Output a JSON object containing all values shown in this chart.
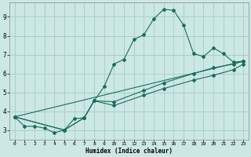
{
  "xlabel": "Humidex (Indice chaleur)",
  "background_color": "#cce8e4",
  "grid_color": "#aacfca",
  "line_color": "#1a6b60",
  "xlim": [
    -0.5,
    23.5
  ],
  "ylim": [
    2.5,
    9.75
  ],
  "xticks": [
    0,
    1,
    2,
    3,
    4,
    5,
    6,
    7,
    8,
    9,
    10,
    11,
    12,
    13,
    14,
    15,
    16,
    17,
    18,
    19,
    20,
    21,
    22,
    23
  ],
  "yticks": [
    3,
    4,
    5,
    6,
    7,
    8,
    9
  ],
  "series_main": [
    [
      0,
      3.7
    ],
    [
      1,
      3.2
    ],
    [
      2,
      3.2
    ],
    [
      3,
      3.1
    ],
    [
      4,
      2.85
    ],
    [
      5,
      3.0
    ],
    [
      6,
      3.6
    ],
    [
      7,
      3.65
    ],
    [
      8,
      4.55
    ],
    [
      9,
      5.3
    ],
    [
      10,
      6.5
    ],
    [
      11,
      6.75
    ],
    [
      12,
      7.8
    ],
    [
      13,
      8.05
    ],
    [
      14,
      8.9
    ],
    [
      15,
      9.4
    ],
    [
      16,
      9.35
    ],
    [
      17,
      8.55
    ],
    [
      18,
      7.05
    ],
    [
      19,
      6.9
    ],
    [
      20,
      7.35
    ],
    [
      21,
      7.05
    ],
    [
      22,
      6.6
    ],
    [
      23,
      6.65
    ]
  ],
  "series_lin1": [
    [
      0,
      3.7
    ],
    [
      23,
      6.65
    ]
  ],
  "series_lin2": [
    [
      0,
      3.7
    ],
    [
      5,
      3.0
    ],
    [
      7,
      3.65
    ],
    [
      8,
      4.55
    ],
    [
      10,
      4.5
    ],
    [
      13,
      5.1
    ],
    [
      15,
      5.5
    ],
    [
      18,
      6.0
    ],
    [
      20,
      6.3
    ],
    [
      22,
      6.5
    ],
    [
      23,
      6.65
    ]
  ],
  "series_lin3": [
    [
      0,
      3.7
    ],
    [
      5,
      3.0
    ],
    [
      7,
      3.65
    ],
    [
      8,
      4.55
    ],
    [
      10,
      4.3
    ],
    [
      13,
      4.85
    ],
    [
      15,
      5.2
    ],
    [
      18,
      5.65
    ],
    [
      20,
      5.9
    ],
    [
      22,
      6.2
    ],
    [
      23,
      6.5
    ]
  ]
}
